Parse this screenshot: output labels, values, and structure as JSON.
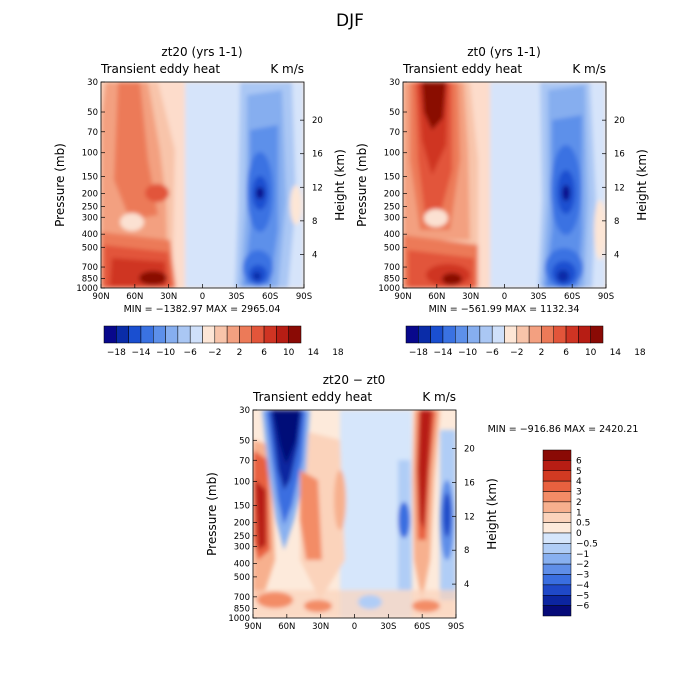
{
  "figure_title": "DJF",
  "chart_data": [
    {
      "type": "heatmap",
      "title": "zt20 (yrs 1-1)",
      "left_string": "Transient eddy heat",
      "right_string": "K m/s",
      "xlabel": "",
      "ylabel": "Pressure (mb)",
      "y2label": "Height (km)",
      "x_ticks": [
        "90N",
        "60N",
        "30N",
        "0",
        "30S",
        "60S",
        "90S"
      ],
      "y_ticks": [
        "30",
        "50",
        "70",
        "100",
        "150",
        "200",
        "250",
        "300",
        "400",
        "500",
        "700",
        "850",
        "1000"
      ],
      "y2_ticks": [
        "20",
        "16",
        "12",
        "8",
        "4"
      ],
      "stats": "MIN = −1382.97   MAX = 2965.04",
      "colorbar_labels": [
        "−18",
        "−14",
        "−10",
        "−6",
        "−2",
        "2",
        "6",
        "10",
        "14",
        "18"
      ],
      "colorbar_colors": [
        "#08088c",
        "#0a2ca8",
        "#1a4fd0",
        "#3a72e2",
        "#5d90ea",
        "#86aeef",
        "#aac7f4",
        "#cfe0fa",
        "#fde6d6",
        "#f8c4aa",
        "#f3a080",
        "#ec7a58",
        "#e2553a",
        "#cf3423",
        "#b71d14",
        "#8a0a05"
      ],
      "features": [
        {
          "name": "nh-surface-max",
          "lat": 50,
          "p": 850,
          "value": 2965.04,
          "sign": "positive"
        },
        {
          "name": "nh-upper-band",
          "lat": 60,
          "p": 200,
          "value": 10,
          "sign": "positive"
        },
        {
          "name": "sh-upper-min",
          "lat": -55,
          "p": 200,
          "value": -18,
          "sign": "negative"
        },
        {
          "name": "sh-surface-min",
          "lat": -55,
          "p": 850,
          "value": -14,
          "sign": "negative"
        }
      ]
    },
    {
      "type": "heatmap",
      "title": "zt0 (yrs 1-1)",
      "left_string": "Transient eddy heat",
      "right_string": "K m/s",
      "xlabel": "",
      "ylabel": "Pressure (mb)",
      "y2label": "Height (km)",
      "x_ticks": [
        "90N",
        "60N",
        "30N",
        "0",
        "30S",
        "60S",
        "90S"
      ],
      "y_ticks": [
        "30",
        "50",
        "70",
        "100",
        "150",
        "200",
        "250",
        "300",
        "400",
        "500",
        "700",
        "850",
        "1000"
      ],
      "y2_ticks": [
        "20",
        "16",
        "12",
        "8",
        "4"
      ],
      "stats": "MIN = −561.99   MAX = 1132.34",
      "colorbar_labels": [
        "−18",
        "−14",
        "−10",
        "−6",
        "−2",
        "2",
        "6",
        "10",
        "14",
        "18"
      ],
      "colorbar_colors": [
        "#08088c",
        "#0a2ca8",
        "#1a4fd0",
        "#3a72e2",
        "#5d90ea",
        "#86aeef",
        "#aac7f4",
        "#cfe0fa",
        "#fde6d6",
        "#f8c4aa",
        "#f3a080",
        "#ec7a58",
        "#e2553a",
        "#cf3423",
        "#b71d14",
        "#8a0a05"
      ],
      "features": [
        {
          "name": "nh-stratosphere-max",
          "lat": 60,
          "p": 40,
          "value": 18,
          "sign": "positive"
        },
        {
          "name": "nh-surface-max",
          "lat": 45,
          "p": 850,
          "value": 1132.34,
          "sign": "positive"
        },
        {
          "name": "sh-upper-min",
          "lat": -55,
          "p": 200,
          "value": -18,
          "sign": "negative"
        },
        {
          "name": "sh-surface-min",
          "lat": -60,
          "p": 850,
          "value": -18,
          "sign": "negative"
        }
      ]
    },
    {
      "type": "heatmap",
      "title": "zt20 − zt0",
      "left_string": "Transient eddy heat",
      "right_string": "K m/s",
      "xlabel": "",
      "ylabel": "Pressure (mb)",
      "y2label": "Height (km)",
      "x_ticks": [
        "90N",
        "60N",
        "30N",
        "0",
        "30S",
        "60S",
        "90S"
      ],
      "y_ticks": [
        "30",
        "50",
        "70",
        "100",
        "150",
        "200",
        "250",
        "300",
        "400",
        "500",
        "700",
        "850",
        "1000"
      ],
      "y2_ticks": [
        "20",
        "16",
        "12",
        "8",
        "4"
      ],
      "stats": "MIN = −916.86   MAX = 2420.21",
      "colorbar_labels": [
        "6",
        "5",
        "4",
        "3",
        "2",
        "1",
        "0.5",
        "0",
        "−0.5",
        "−1",
        "−2",
        "−3",
        "−4",
        "−5",
        "−6"
      ],
      "colorbar_colors": [
        "#8a0a05",
        "#b71d14",
        "#d23a22",
        "#e8613f",
        "#f38c66",
        "#f7b08e",
        "#fbd3bb",
        "#fdeadb",
        "#d6e6fb",
        "#b0cdf6",
        "#88b0f0",
        "#5f8ee8",
        "#3a6ee0",
        "#1f48c8",
        "#0c25a0",
        "#060a78"
      ],
      "features": [
        {
          "name": "nh-stratosphere-min",
          "lat": 60,
          "p": 40,
          "value": -6,
          "sign": "negative"
        },
        {
          "name": "nh-polar-max",
          "lat": 80,
          "p": 200,
          "value": 5,
          "sign": "positive"
        },
        {
          "name": "sh-jet-max",
          "lat": -62,
          "p": 200,
          "value": 6,
          "sign": "positive"
        },
        {
          "name": "sh-jet-min",
          "lat": -50,
          "p": 200,
          "value": -5,
          "sign": "negative"
        },
        {
          "name": "sh-polar-min",
          "lat": -80,
          "p": 300,
          "value": -4,
          "sign": "negative"
        }
      ]
    }
  ]
}
